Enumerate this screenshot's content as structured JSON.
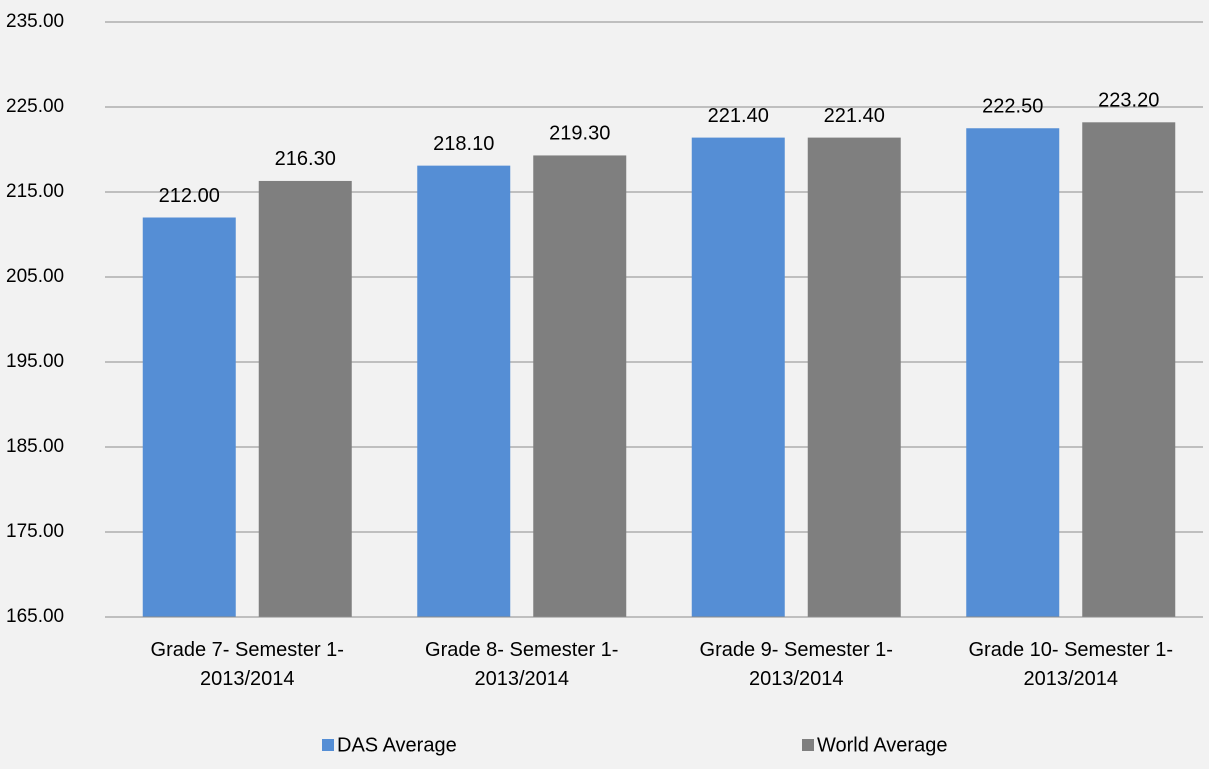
{
  "chart_data": {
    "type": "bar",
    "categories": [
      "Grade 7- Semester 1-\n2013/2014",
      "Grade 8- Semester 1-\n2013/2014",
      "Grade 9- Semester 1-\n2013/2014",
      "Grade 10- Semester 1-\n2013/2014"
    ],
    "series": [
      {
        "name": "DAS Average",
        "color": "#558ed5",
        "values": [
          212.0,
          218.1,
          221.4,
          222.5
        ],
        "value_labels": [
          "212.00",
          "218.10",
          "221.40",
          "222.50"
        ]
      },
      {
        "name": "World Average",
        "color": "#7f7f7f",
        "values": [
          216.3,
          219.3,
          221.4,
          223.2
        ],
        "value_labels": [
          "216.30",
          "219.30",
          "221.40",
          "223.20"
        ]
      }
    ],
    "ylim": [
      165,
      235
    ],
    "yticks": [
      {
        "value": 165,
        "label": "165.00"
      },
      {
        "value": 175,
        "label": "175.00"
      },
      {
        "value": 185,
        "label": "185.00"
      },
      {
        "value": 195,
        "label": "195.00"
      },
      {
        "value": 205,
        "label": "205.00"
      },
      {
        "value": 215,
        "label": "215.00"
      },
      {
        "value": 225,
        "label": "225.00"
      },
      {
        "value": 235,
        "label": "235.00"
      }
    ],
    "grid": true,
    "legend": "bottom"
  }
}
